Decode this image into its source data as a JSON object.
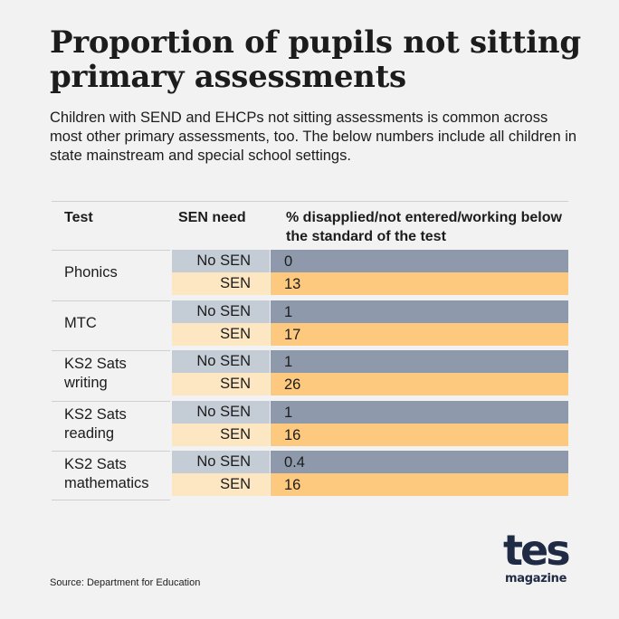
{
  "title": "Proportion of pupils not sitting primary assessments",
  "subtitle": "Children with SEND and EHCPs not sitting assessments is common across most other primary assessments, too. The below numbers include all children in state mainstream and special school settings.",
  "headers": {
    "test": "Test",
    "sen_need": "SEN need",
    "pct": "% disapplied/not entered/working below the standard of the test"
  },
  "source": "Source: Department for Education",
  "logo": {
    "main": "tes",
    "sub": "magazine"
  },
  "colors": {
    "no_sen_label": "#c4ccd6",
    "no_sen_value": "#8e9aab",
    "sen_label": "#fde6c2",
    "sen_value": "#fdc97e"
  },
  "chart_data": {
    "type": "table",
    "columns": [
      "Test",
      "SEN need",
      "% disapplied/not entered/working below the standard of the test"
    ],
    "groups": [
      {
        "test": "Phonics",
        "rows": [
          {
            "need": "No SEN",
            "value": "0"
          },
          {
            "need": "SEN",
            "value": "13"
          }
        ]
      },
      {
        "test": "MTC",
        "rows": [
          {
            "need": "No SEN",
            "value": "1"
          },
          {
            "need": "SEN",
            "value": "17"
          }
        ]
      },
      {
        "test": "KS2 Sats writing",
        "rows": [
          {
            "need": "No SEN",
            "value": "1"
          },
          {
            "need": "SEN",
            "value": "26"
          }
        ]
      },
      {
        "test": "KS2 Sats reading",
        "rows": [
          {
            "need": "No SEN",
            "value": "1"
          },
          {
            "need": "SEN",
            "value": "16"
          }
        ]
      },
      {
        "test": "KS2 Sats mathematics",
        "rows": [
          {
            "need": "No SEN",
            "value": "0.4"
          },
          {
            "need": "SEN",
            "value": "16"
          }
        ]
      }
    ]
  }
}
